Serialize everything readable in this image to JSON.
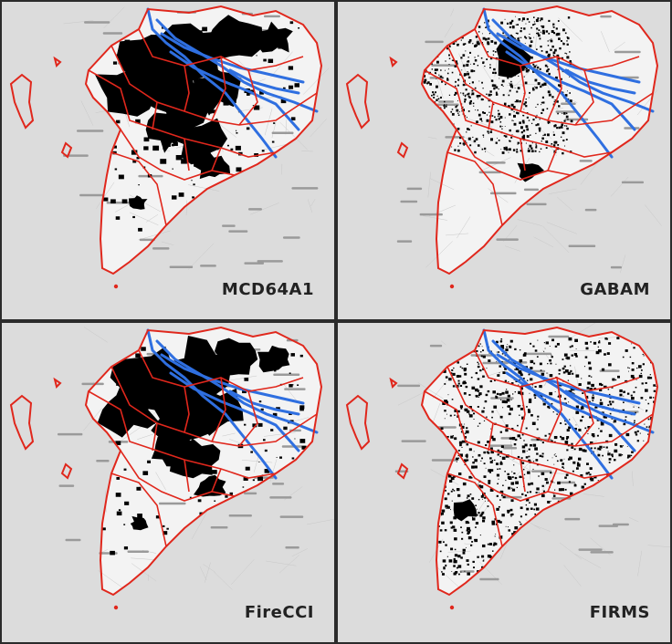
{
  "figure": {
    "panels": [
      {
        "id": "mcd64a1",
        "label": "MCD64A1",
        "density": "dense-north"
      },
      {
        "id": "gabam",
        "label": "GABAM",
        "density": "sparse-speckled"
      },
      {
        "id": "fireccl",
        "label": "FireCCI",
        "density": "dense-north"
      },
      {
        "id": "firms",
        "label": "FIRMS",
        "density": "widespread"
      }
    ],
    "colors": {
      "background": "#dcdcdc",
      "land": "#f4f4f4",
      "boundary": "#e0271c",
      "river": "#2f6fe0",
      "burned": "#000000",
      "divider": "#2b2b2b"
    }
  }
}
